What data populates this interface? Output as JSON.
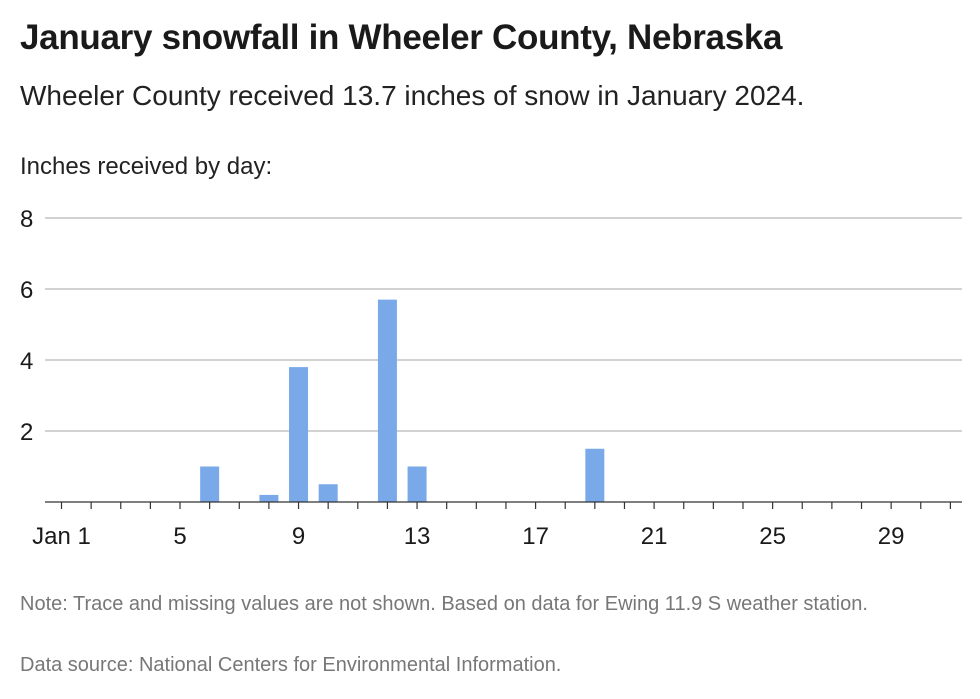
{
  "header": {
    "title": "January snowfall in Wheeler County, Nebraska",
    "subtitle": "Wheeler County received 13.7 inches of snow in January 2024.",
    "ylabel": "Inches received by day:"
  },
  "footer": {
    "note": "Note: Trace and missing values are not shown. Based on data for Ewing 11.9 S weather station.",
    "source": "Data source: National Centers for Environmental Information."
  },
  "colors": {
    "bar": "#7aa9ea",
    "grid": "#b8b8b8",
    "axis": "#333333",
    "text": "#1a1a1a"
  },
  "chart_data": {
    "type": "bar",
    "x": [
      1,
      2,
      3,
      4,
      5,
      6,
      7,
      8,
      9,
      10,
      11,
      12,
      13,
      14,
      15,
      16,
      17,
      18,
      19,
      20,
      21,
      22,
      23,
      24,
      25,
      26,
      27,
      28,
      29,
      30,
      31
    ],
    "values": [
      0,
      0,
      0,
      0,
      0,
      1.0,
      0,
      0.2,
      3.8,
      0.5,
      0,
      5.7,
      1.0,
      0,
      0,
      0,
      0,
      0,
      1.5,
      0,
      0,
      0,
      0,
      0,
      0,
      0,
      0,
      0,
      0,
      0,
      0
    ],
    "ylim": [
      0,
      8
    ],
    "yticks": [
      2,
      4,
      6,
      8
    ],
    "xticks": [
      1,
      5,
      9,
      13,
      17,
      21,
      25,
      29
    ],
    "xticklabels": [
      "Jan 1",
      "5",
      "9",
      "13",
      "17",
      "21",
      "25",
      "29"
    ],
    "grid": true
  }
}
